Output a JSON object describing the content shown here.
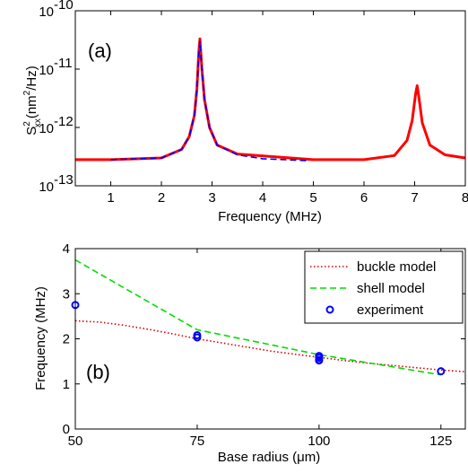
{
  "chart_data": [
    {
      "type": "line",
      "panel_label": "(a)",
      "xlabel": "Frequency (MHz)",
      "ylabel": {
        "base": "S",
        "sup": "2",
        "sub": "xx",
        "rest": "(nm",
        "unit_sup": "2",
        "tail": "/Hz)"
      },
      "xlim": [
        0.3,
        8
      ],
      "ylim_log10": [
        -13,
        -10
      ],
      "y_scale": "log",
      "x_ticks": [
        "1",
        "2",
        "3",
        "4",
        "5",
        "6",
        "7",
        "8"
      ],
      "y_ticks": [
        {
          "base": "10",
          "exp": "-13"
        },
        {
          "base": "10",
          "exp": "-12"
        },
        {
          "base": "10",
          "exp": "-11"
        },
        {
          "base": "10",
          "exp": "-10"
        }
      ],
      "grid": false,
      "series": [
        {
          "color": "#ff0000",
          "style": "solid",
          "x": [
            0.3,
            1.0,
            2.0,
            2.4,
            2.55,
            2.65,
            2.7,
            2.74,
            2.76,
            2.8,
            2.85,
            2.95,
            3.1,
            3.5,
            5.0,
            6.0,
            6.6,
            6.85,
            6.95,
            7.02,
            7.05,
            7.08,
            7.15,
            7.3,
            7.6,
            8.0
          ],
          "y": [
            2.8e-13,
            2.8e-13,
            3e-13,
            4.2e-13,
            7e-13,
            1.6e-12,
            4.5e-12,
            2e-11,
            3.3e-11,
            1e-11,
            3e-12,
            1e-12,
            5e-13,
            3.5e-13,
            2.8e-13,
            2.8e-13,
            3.3e-13,
            6e-13,
            1.3e-12,
            3.8e-12,
            5.2e-12,
            3.5e-12,
            1.2e-12,
            5e-13,
            3.4e-13,
            3e-13
          ]
        },
        {
          "color": "#0000ff",
          "style": "dashed",
          "x": [
            1.0,
            2.0,
            2.4,
            2.55,
            2.65,
            2.7,
            2.74,
            2.76,
            2.8,
            2.85,
            2.95,
            3.1,
            3.5,
            4.0,
            4.9
          ],
          "y": [
            2.8e-13,
            3e-13,
            4.2e-13,
            7e-13,
            1.6e-12,
            4.5e-12,
            2e-11,
            3e-11,
            1e-11,
            3e-12,
            1e-12,
            5e-13,
            3.4e-13,
            2.9e-13,
            2.7e-13
          ]
        }
      ]
    },
    {
      "type": "line",
      "panel_label": "(b)",
      "xlabel": "Base radius (μm)",
      "ylabel": "Frequency (MHz)",
      "xlim": [
        50,
        130
      ],
      "ylim": [
        0,
        4
      ],
      "x_ticks": [
        "50",
        "75",
        "100",
        "125"
      ],
      "x_tick_values": [
        50,
        75,
        100,
        125
      ],
      "y_ticks": [
        "0",
        "1",
        "2",
        "3",
        "4"
      ],
      "y_tick_values": [
        0,
        1,
        2,
        3,
        4
      ],
      "grid": false,
      "legend_position": "top-right",
      "series": [
        {
          "name": "buckle model",
          "color": "#dd0000",
          "style": "dotted",
          "x": [
            50,
            55,
            60,
            65,
            70,
            75,
            80,
            85,
            90,
            95,
            100,
            105,
            110,
            115,
            120,
            125,
            130
          ],
          "y": [
            2.4,
            2.37,
            2.3,
            2.21,
            2.11,
            2.0,
            1.91,
            1.82,
            1.73,
            1.66,
            1.59,
            1.52,
            1.46,
            1.41,
            1.36,
            1.31,
            1.27
          ]
        },
        {
          "name": "shell model",
          "color": "#00dd00",
          "style": "dashed",
          "x": [
            50,
            75,
            100,
            125
          ],
          "y": [
            3.75,
            2.2,
            1.65,
            1.2
          ]
        },
        {
          "name": "experiment",
          "color": "#0000ff",
          "style": "markers",
          "x": [
            50,
            75,
            75,
            100,
            100,
            100,
            100,
            125
          ],
          "y": [
            2.75,
            2.08,
            2.03,
            1.62,
            1.58,
            1.53,
            1.52,
            1.28
          ]
        }
      ]
    }
  ]
}
